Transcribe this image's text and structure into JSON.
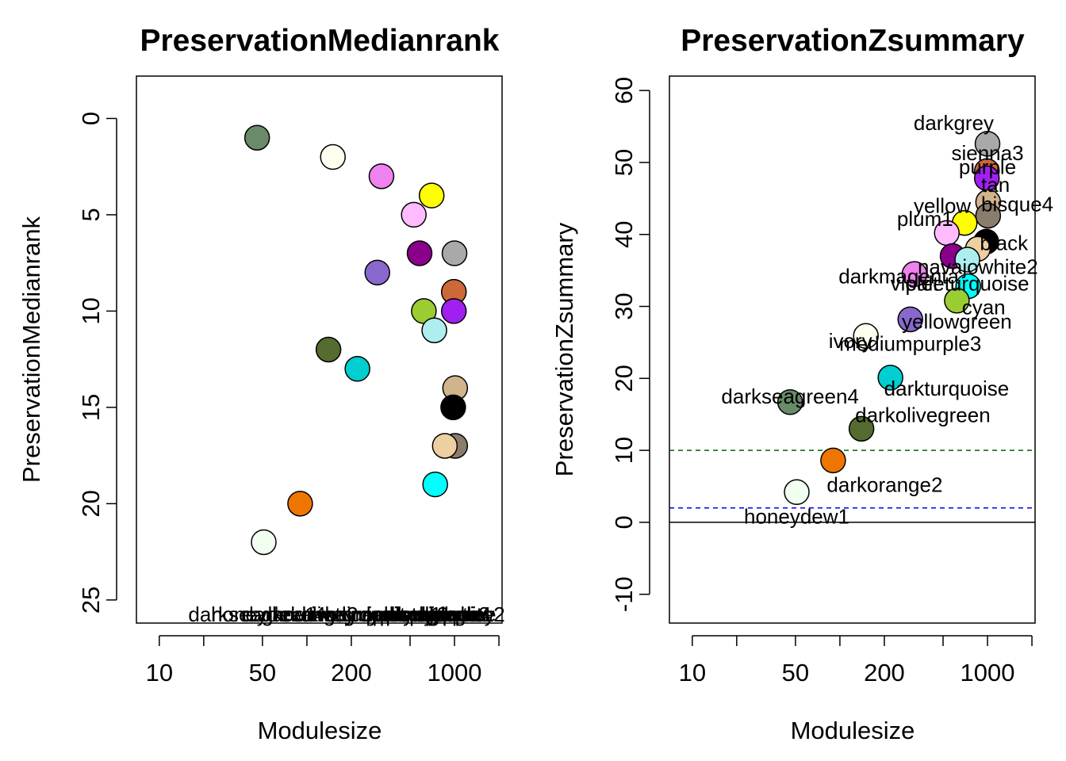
{
  "chart_data": [
    {
      "type": "scatter",
      "title": "PreservationMedianrank",
      "xlabel": "Modulesize",
      "ylabel": "PreservationMedianrank",
      "x_scale": "log",
      "xlim": [
        7,
        2100
      ],
      "ylim": [
        26.2,
        -2.2
      ],
      "x_ticks": [
        10,
        20,
        50,
        100,
        200,
        500,
        1000,
        2000
      ],
      "x_tick_labels": [
        "10",
        "",
        "50",
        "",
        "200",
        "",
        "1000",
        ""
      ],
      "y_ticks": [
        0,
        5,
        10,
        15,
        20,
        25
      ],
      "y_tick_labels": [
        "0",
        "5",
        "10",
        "15",
        "20",
        "25"
      ],
      "points": [
        {
          "module": "darkseagreen4",
          "x": 46,
          "y": 1,
          "color": "#698B69"
        },
        {
          "module": "ivory",
          "x": 150,
          "y": 2,
          "color": "#FFFFF0"
        },
        {
          "module": "violet",
          "x": 320,
          "y": 3,
          "color": "#EE82EE"
        },
        {
          "module": "yellow",
          "x": 700,
          "y": 4,
          "color": "#FFFF00"
        },
        {
          "module": "plum1",
          "x": 530,
          "y": 5,
          "color": "#FFBBFF"
        },
        {
          "module": "darkmagenta",
          "x": 580,
          "y": 7,
          "color": "#8B008B"
        },
        {
          "module": "darkgrey",
          "x": 1000,
          "y": 7,
          "color": "#A9A9A9"
        },
        {
          "module": "mediumpurple3",
          "x": 300,
          "y": 8,
          "color": "#8968CD"
        },
        {
          "module": "sienna3",
          "x": 990,
          "y": 9,
          "color": "#CD6839"
        },
        {
          "module": "purple",
          "x": 990,
          "y": 10,
          "color": "#A020F0"
        },
        {
          "module": "yellowgreen",
          "x": 620,
          "y": 10,
          "color": "#9ACD32"
        },
        {
          "module": "paleturquoise",
          "x": 730,
          "y": 11,
          "color": "#AFEEEE"
        },
        {
          "module": "darkolivegreen",
          "x": 140,
          "y": 12,
          "color": "#556B2F"
        },
        {
          "module": "darkturquoise",
          "x": 220,
          "y": 13,
          "color": "#00CED1"
        },
        {
          "module": "tan",
          "x": 1010,
          "y": 14,
          "color": "#D2B48C"
        },
        {
          "module": "black",
          "x": 980,
          "y": 15,
          "color": "#000000"
        },
        {
          "module": "bisque4",
          "x": 1010,
          "y": 17,
          "color": "#8B7D6B"
        },
        {
          "module": "navajowhite2",
          "x": 860,
          "y": 17,
          "color": "#EECFA1"
        },
        {
          "module": "cyan",
          "x": 740,
          "y": 19,
          "color": "#00FFFF"
        },
        {
          "module": "darkorange2",
          "x": 90,
          "y": 20,
          "color": "#EE7600"
        },
        {
          "module": "honeydew1",
          "x": 51,
          "y": 22,
          "color": "#F0FFF0"
        }
      ]
    },
    {
      "type": "scatter",
      "title": "PreservationZsummary",
      "xlabel": "Modulesize",
      "ylabel": "PreservationZsummary",
      "x_scale": "log",
      "xlim": [
        7,
        2100
      ],
      "ylim": [
        -14,
        62
      ],
      "x_ticks": [
        10,
        20,
        50,
        100,
        200,
        500,
        1000,
        2000
      ],
      "x_tick_labels": [
        "10",
        "",
        "50",
        "",
        "200",
        "",
        "1000",
        ""
      ],
      "y_ticks": [
        -10,
        0,
        10,
        20,
        30,
        40,
        50,
        60
      ],
      "y_tick_labels": [
        "-10",
        "0",
        "10",
        "20",
        "30",
        "40",
        "50",
        "60"
      ],
      "hlines": [
        {
          "y": 0,
          "color": "#000000",
          "dash": "solid"
        },
        {
          "y": 2,
          "color": "#0000FF",
          "dash": "dashed"
        },
        {
          "y": 10,
          "color": "#006400",
          "dash": "dashed"
        }
      ],
      "points": [
        {
          "module": "darkgrey",
          "x": 1000,
          "y": 52.6,
          "color": "#A9A9A9"
        },
        {
          "module": "sienna3",
          "x": 990,
          "y": 48.8,
          "color": "#CD6839"
        },
        {
          "module": "purple",
          "x": 990,
          "y": 47.8,
          "color": "#A020F0"
        },
        {
          "module": "tan",
          "x": 1010,
          "y": 44.5,
          "color": "#D2B48C"
        },
        {
          "module": "bisque4",
          "x": 1010,
          "y": 42.6,
          "color": "#8B7D6B"
        },
        {
          "module": "yellow",
          "x": 700,
          "y": 41.6,
          "color": "#FFFF00"
        },
        {
          "module": "plum1",
          "x": 530,
          "y": 40.2,
          "color": "#FFBBFF"
        },
        {
          "module": "black",
          "x": 980,
          "y": 39.0,
          "color": "#000000"
        },
        {
          "module": "navajowhite2",
          "x": 860,
          "y": 38.0,
          "color": "#EECFA1"
        },
        {
          "module": "darkmagenta",
          "x": 580,
          "y": 37.0,
          "color": "#8B008B"
        },
        {
          "module": "paleturquoise",
          "x": 730,
          "y": 36.5,
          "color": "#AFEEEE"
        },
        {
          "module": "violet",
          "x": 320,
          "y": 34.5,
          "color": "#EE82EE"
        },
        {
          "module": "cyan",
          "x": 740,
          "y": 32.8,
          "color": "#00FFFF"
        },
        {
          "module": "yellowgreen",
          "x": 620,
          "y": 30.8,
          "color": "#9ACD32"
        },
        {
          "module": "mediumpurple3",
          "x": 300,
          "y": 28.2,
          "color": "#8968CD"
        },
        {
          "module": "ivory",
          "x": 150,
          "y": 25.9,
          "color": "#FFFFF0"
        },
        {
          "module": "darkturquoise",
          "x": 220,
          "y": 20.1,
          "color": "#00CED1"
        },
        {
          "module": "darkseagreen4",
          "x": 46,
          "y": 16.7,
          "color": "#698B69"
        },
        {
          "module": "darkolivegreen",
          "x": 140,
          "y": 13.0,
          "color": "#556B2F"
        },
        {
          "module": "darkorange2",
          "x": 90,
          "y": 8.6,
          "color": "#EE7600"
        },
        {
          "module": "honeydew1",
          "x": 51,
          "y": 4.2,
          "color": "#F0FFF0"
        }
      ],
      "text_labels": [
        {
          "text": "darkgrey",
          "x": 1000,
          "y": 55.5,
          "pos": "left"
        },
        {
          "text": "sienna3",
          "x": 1000,
          "y": 51.3,
          "pos": "center"
        },
        {
          "text": "purple",
          "x": 1000,
          "y": 49.4,
          "pos": "center"
        },
        {
          "text": "tan",
          "x": 1000,
          "y": 46.9,
          "pos": "right"
        },
        {
          "text": "bisque4",
          "x": 1000,
          "y": 44.2,
          "pos": "right"
        },
        {
          "text": "yellow",
          "x": 700,
          "y": 44.0,
          "pos": "left"
        },
        {
          "text": "plum1",
          "x": 530,
          "y": 42.2,
          "pos": "left"
        },
        {
          "text": "black",
          "x": 980,
          "y": 38.8,
          "pos": "right"
        },
        {
          "text": "navajowhite2",
          "x": 860,
          "y": 35.5,
          "pos": "center"
        },
        {
          "text": "darkmagenta",
          "x": 580,
          "y": 34.2,
          "pos": "left"
        },
        {
          "text": "violet",
          "x": 320,
          "y": 33.2,
          "pos": "center"
        },
        {
          "text": "paleturquoise",
          "x": 730,
          "y": 33.2,
          "pos": "center"
        },
        {
          "text": "cyan",
          "x": 740,
          "y": 29.9,
          "pos": "right"
        },
        {
          "text": "yellowgreen",
          "x": 620,
          "y": 27.9,
          "pos": "center"
        },
        {
          "text": "ivory",
          "x": 150,
          "y": 25.2,
          "pos": "left"
        },
        {
          "text": "mediumpurple3",
          "x": 300,
          "y": 24.8,
          "pos": "center"
        },
        {
          "text": "darkturquoise",
          "x": 220,
          "y": 18.6,
          "pos": "right"
        },
        {
          "text": "darkseagreen4",
          "x": 46,
          "y": 17.5,
          "pos": "center"
        },
        {
          "text": "darkolivegreen",
          "x": 140,
          "y": 14.9,
          "pos": "right"
        },
        {
          "text": "darkorange2",
          "x": 90,
          "y": 5.2,
          "pos": "right"
        },
        {
          "text": "honeydew1",
          "x": 51,
          "y": 0.8,
          "pos": "center"
        }
      ]
    }
  ]
}
